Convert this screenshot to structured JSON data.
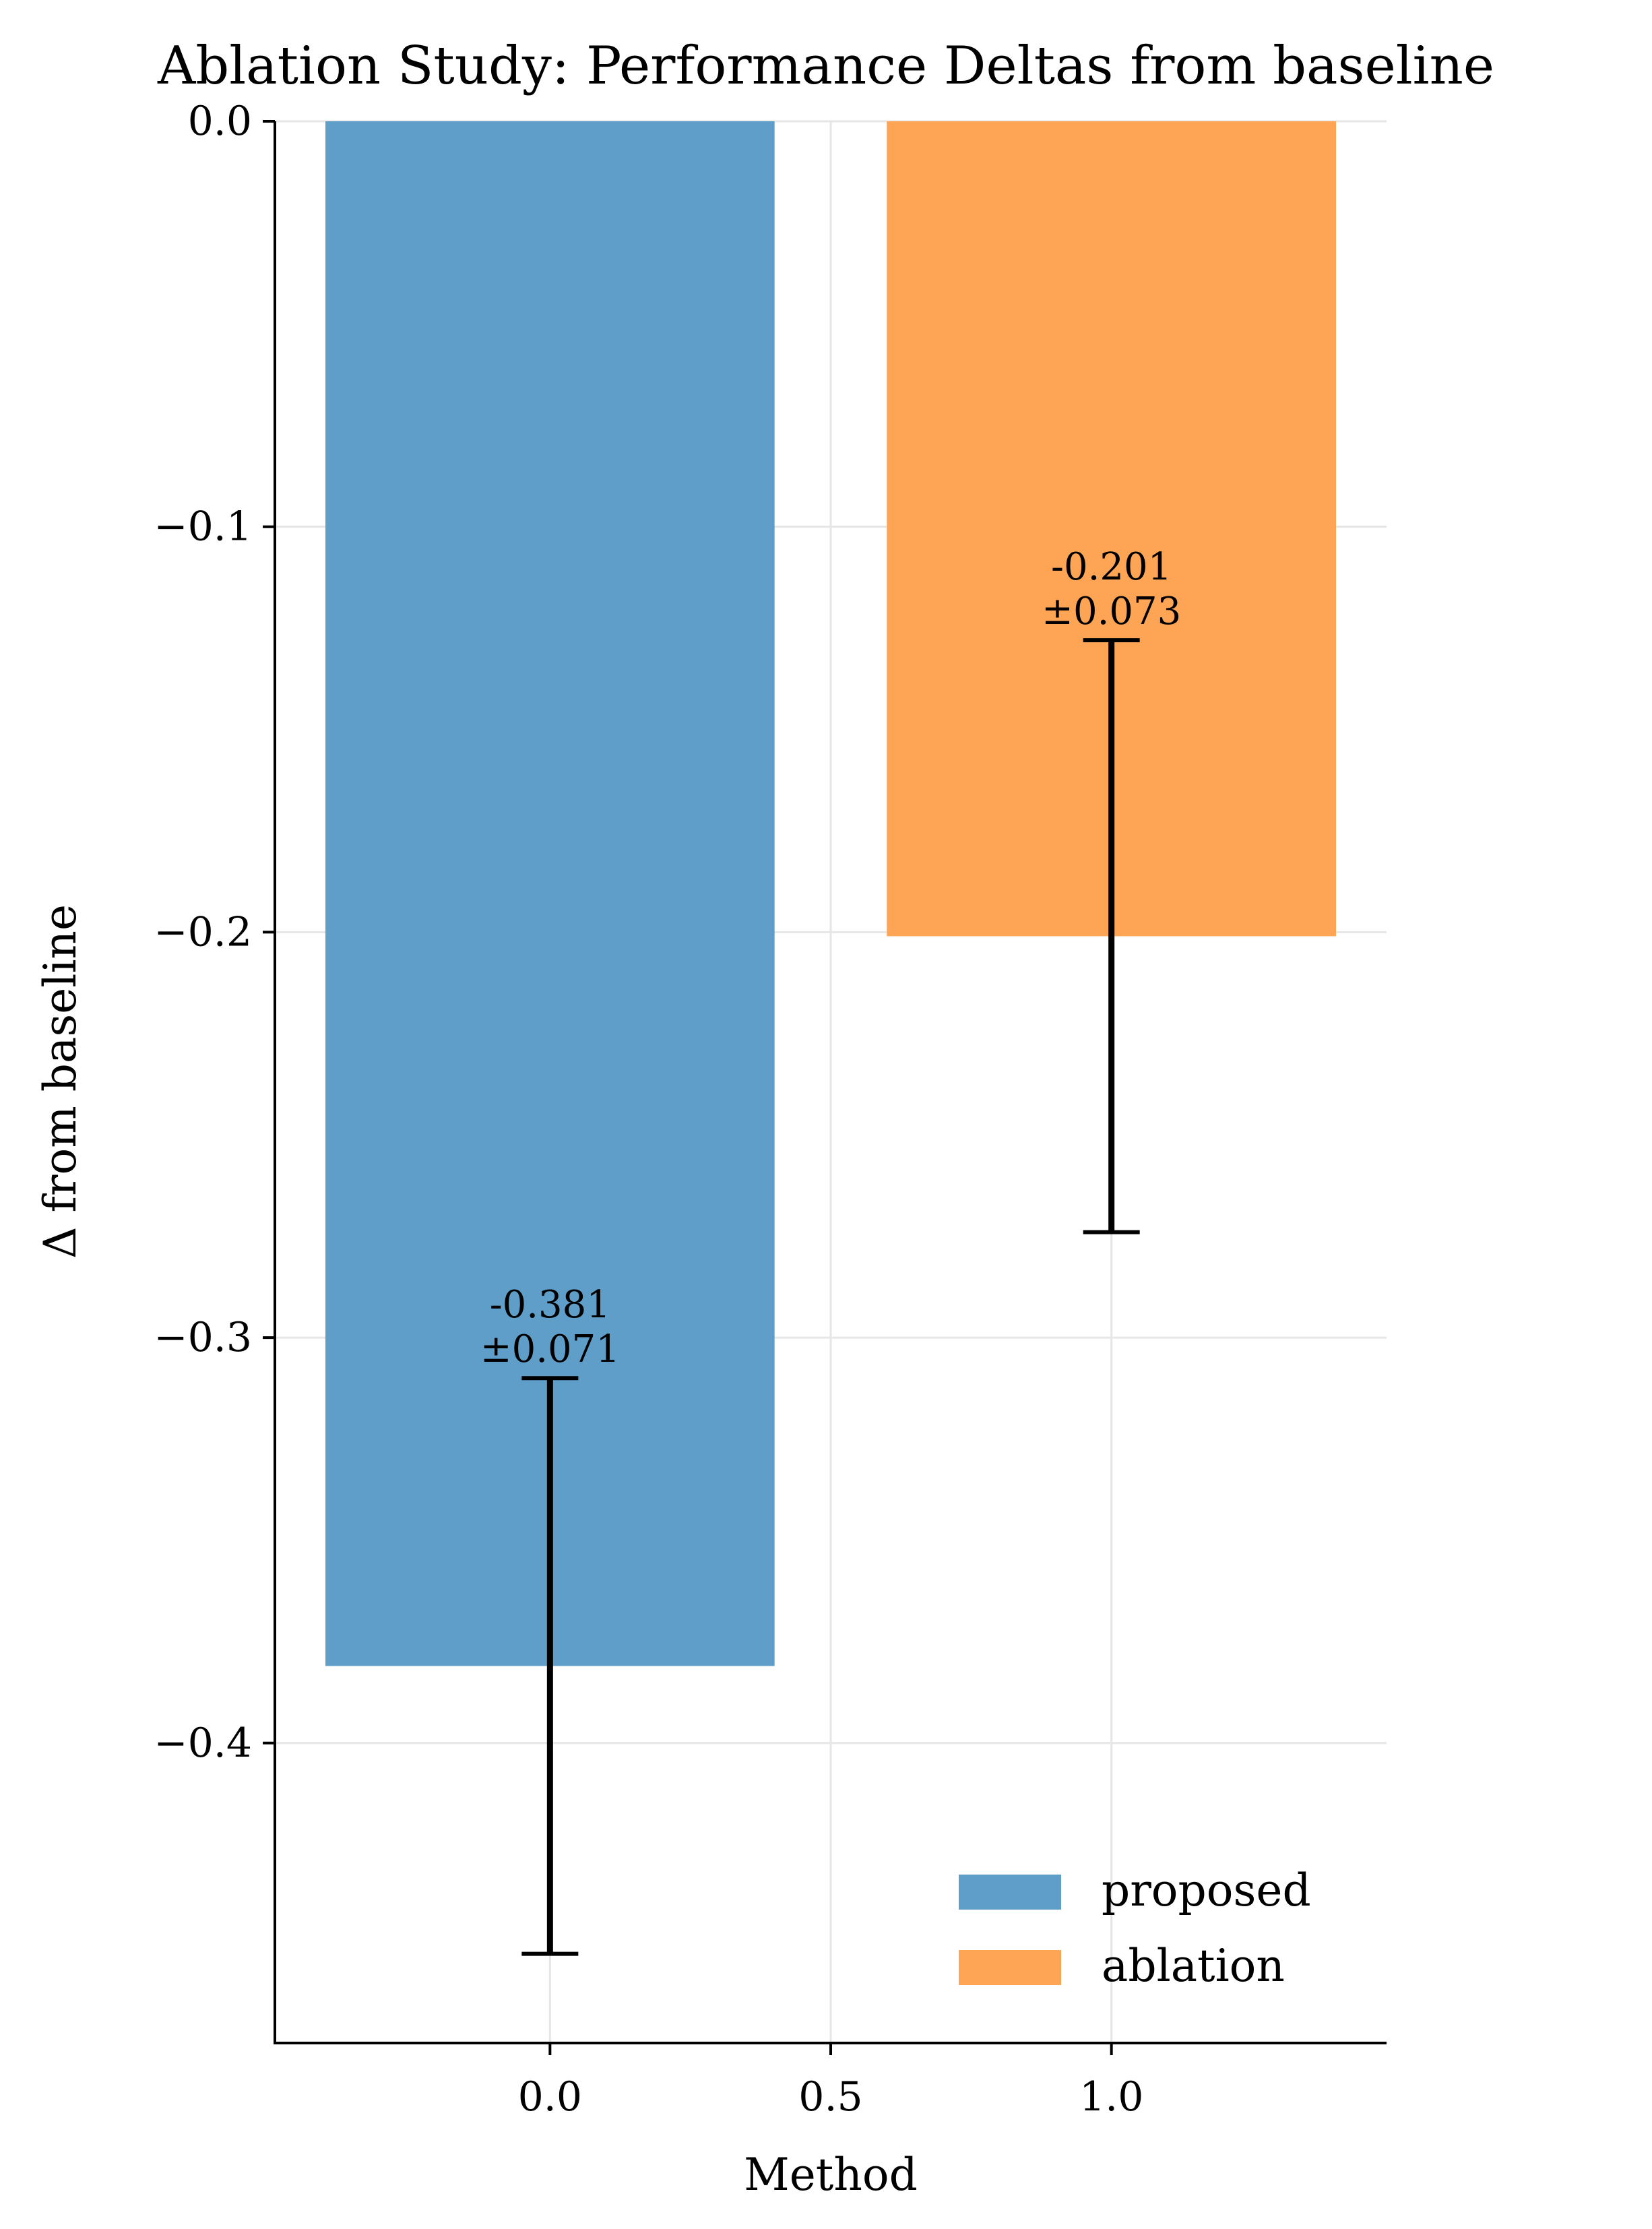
{
  "chart_data": {
    "type": "bar",
    "title": "Ablation Study: Performance Deltas from baseline",
    "xlabel": "Method",
    "ylabel": "Δ from baseline",
    "xlim": [
      -0.49,
      1.49
    ],
    "ylim": [
      -0.474,
      0.0
    ],
    "xticks": [
      0.0,
      0.5,
      1.0
    ],
    "xtick_labels": [
      "0.0",
      "0.5",
      "1.0"
    ],
    "yticks": [
      0.0,
      -0.1,
      -0.2,
      -0.3,
      -0.4
    ],
    "ytick_labels": [
      "0.0",
      "−0.1",
      "−0.2",
      "−0.3",
      "−0.4"
    ],
    "grid": true,
    "legend_position": "bottom-right",
    "series": [
      {
        "name": "proposed",
        "x": 0.0,
        "value": -0.381,
        "error": 0.071,
        "color": "#5f9ec9",
        "label_line1": "-0.381",
        "label_line2": "±0.071"
      },
      {
        "name": "ablation",
        "x": 1.0,
        "value": -0.201,
        "error": 0.073,
        "color": "#fea455",
        "label_line1": "-0.201",
        "label_line2": "±0.073"
      }
    ],
    "bar_width": 0.8
  }
}
